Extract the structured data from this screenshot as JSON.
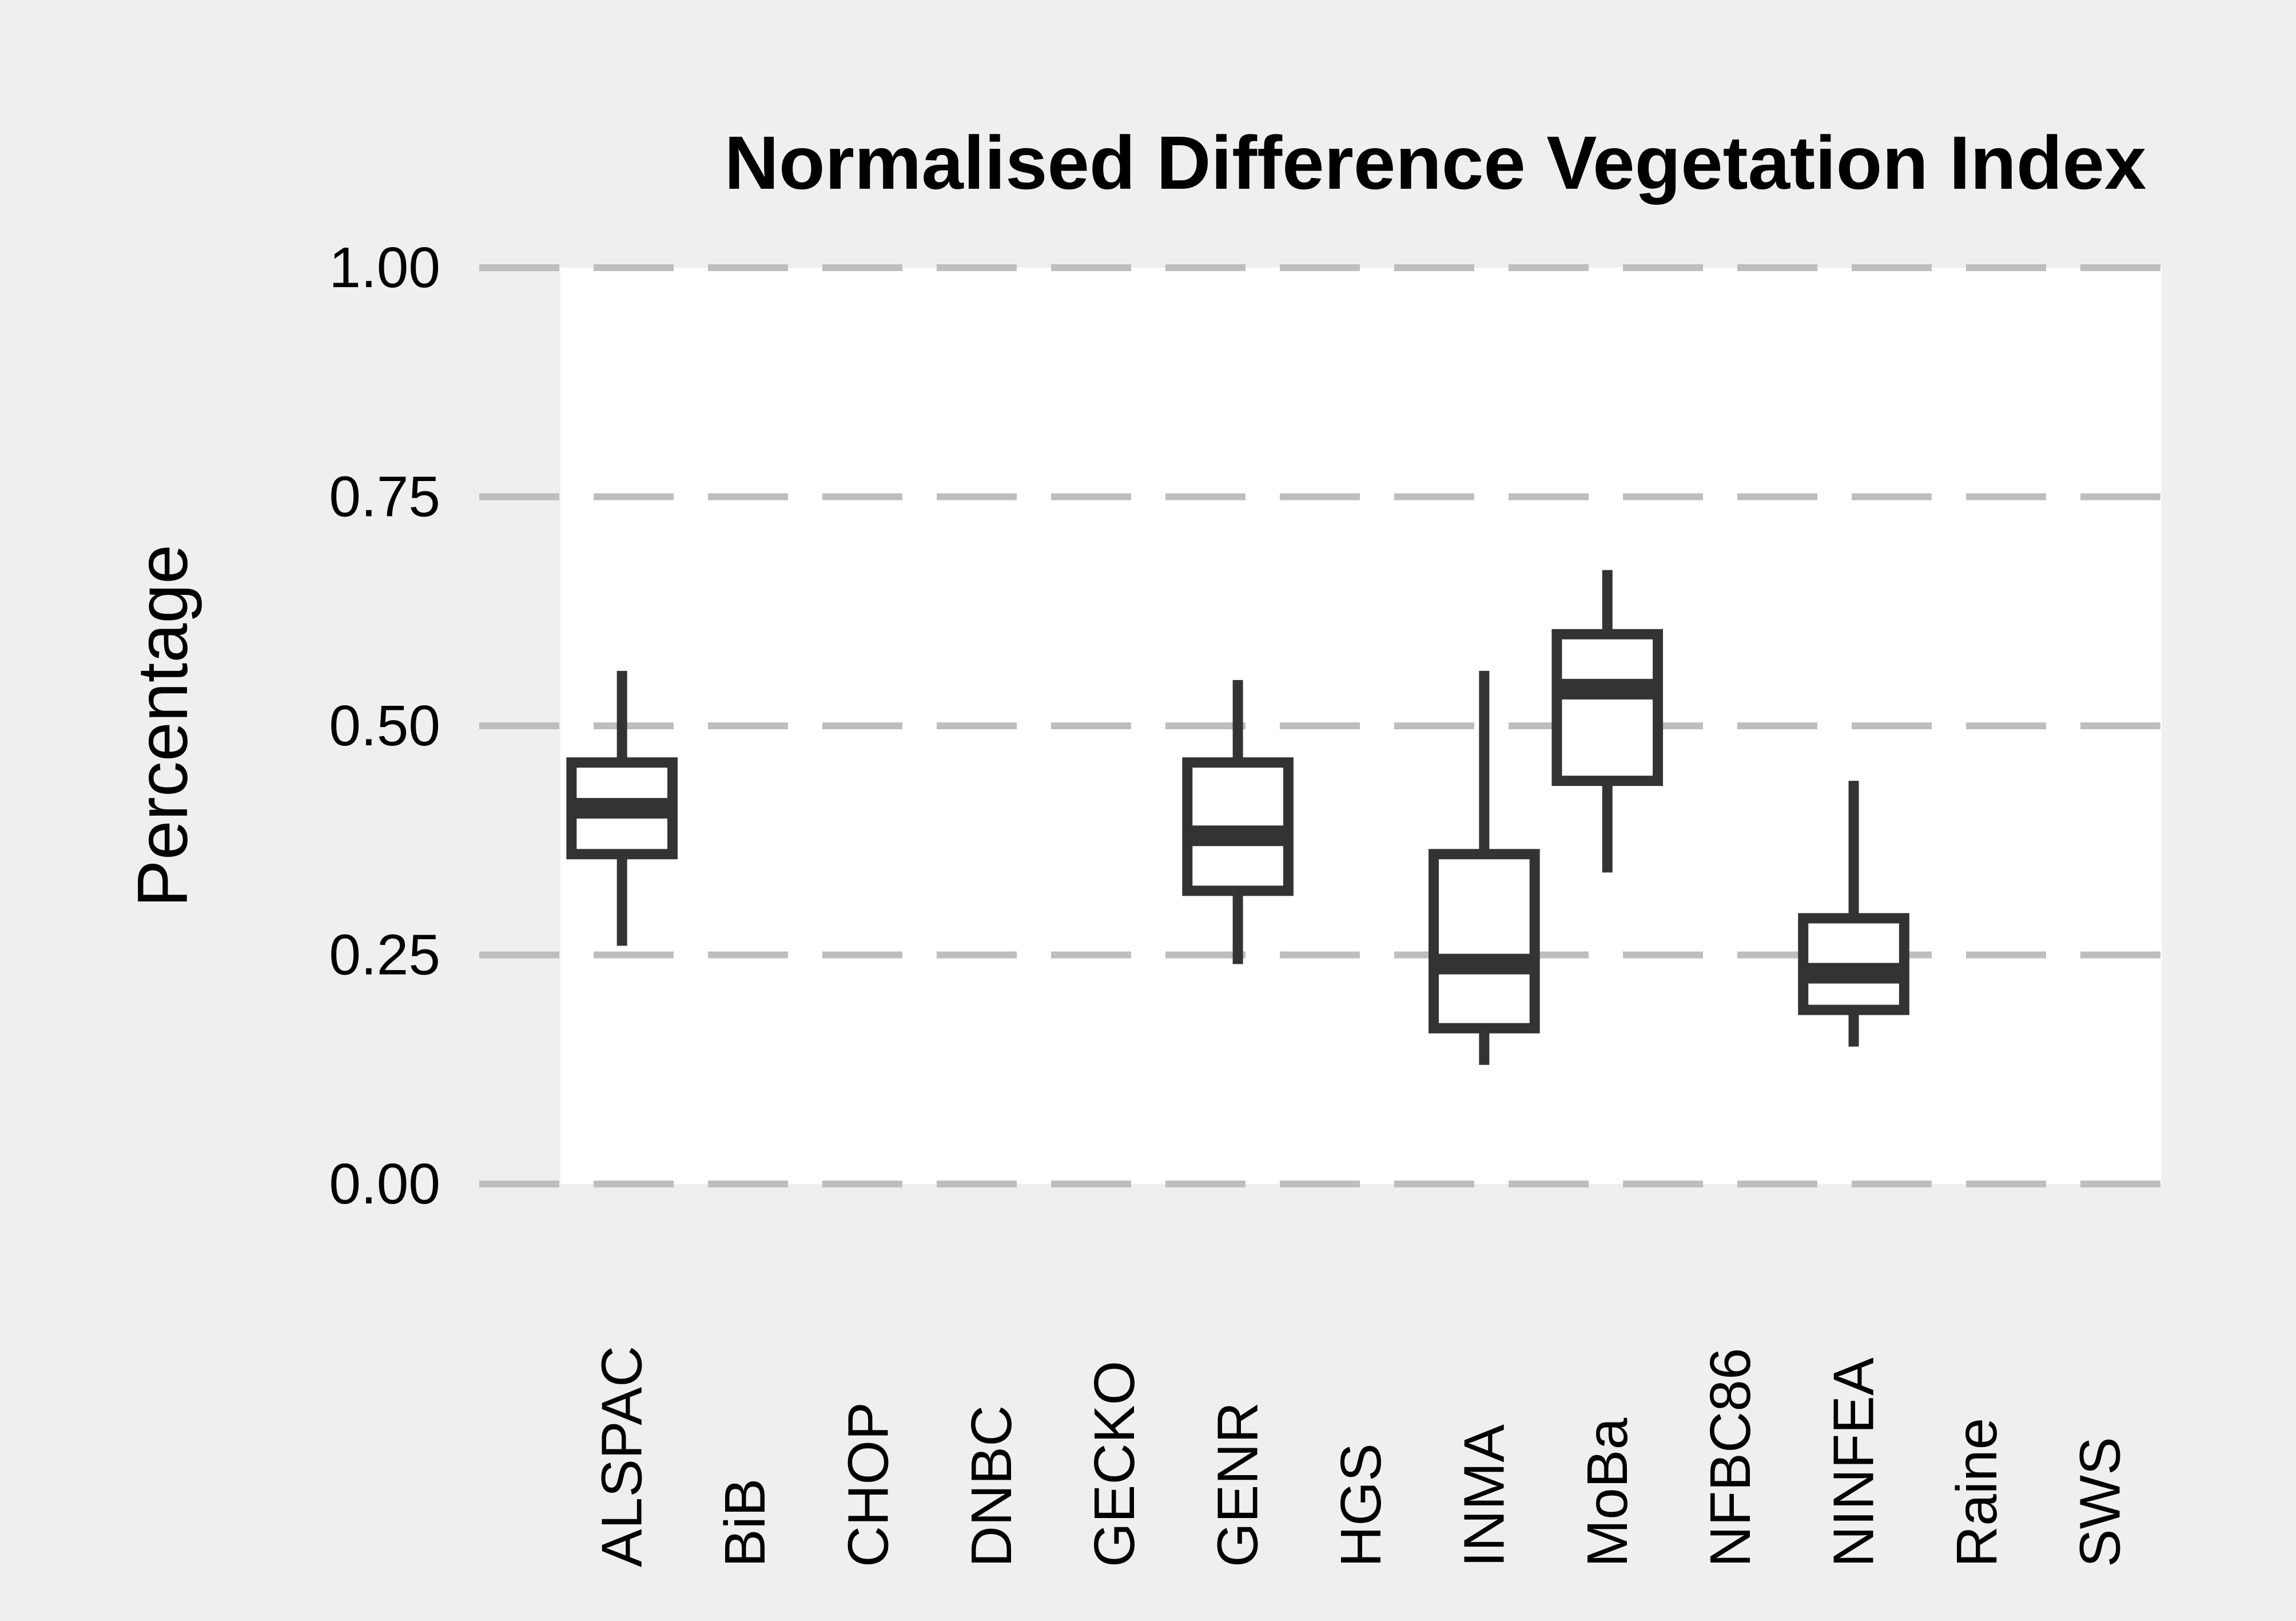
{
  "chart_data": {
    "type": "box",
    "title": "Normalised Difference Vegetation Index",
    "ylabel": "Percentage",
    "xlabel": "",
    "ylim": [
      0,
      1
    ],
    "yticks": [
      "0.00",
      "0.25",
      "0.50",
      "0.75",
      "1.00"
    ],
    "ytick_values": [
      0,
      0.25,
      0.5,
      0.75,
      1
    ],
    "grid": true,
    "legend": "none",
    "categories": [
      "ALSPAC",
      "BiB",
      "CHOP",
      "DNBC",
      "GECKO",
      "GENR",
      "HGS",
      "INMA",
      "MoBa",
      "NFBC86",
      "NINFEA",
      "Raine",
      "SWS"
    ],
    "boxes": [
      {
        "category": "ALSPAC",
        "whisker_low": 0.26,
        "q1": 0.36,
        "median": 0.41,
        "q3": 0.46,
        "whisker_high": 0.56
      },
      {
        "category": "GENR",
        "whisker_low": 0.24,
        "q1": 0.32,
        "median": 0.38,
        "q3": 0.46,
        "whisker_high": 0.55
      },
      {
        "category": "INMA",
        "whisker_low": 0.13,
        "q1": 0.17,
        "median": 0.24,
        "q3": 0.36,
        "whisker_high": 0.56
      },
      {
        "category": "MoBa",
        "whisker_low": 0.34,
        "q1": 0.44,
        "median": 0.54,
        "q3": 0.6,
        "whisker_high": 0.67
      },
      {
        "category": "NINFEA",
        "whisker_low": 0.15,
        "q1": 0.19,
        "median": 0.23,
        "q3": 0.29,
        "whisker_high": 0.44
      }
    ]
  },
  "colors": {
    "outer_background": "#efefef",
    "panel_background": "#ffffff",
    "gridline": "#bebebe",
    "box_stroke": "#333333",
    "text": "#000000"
  }
}
